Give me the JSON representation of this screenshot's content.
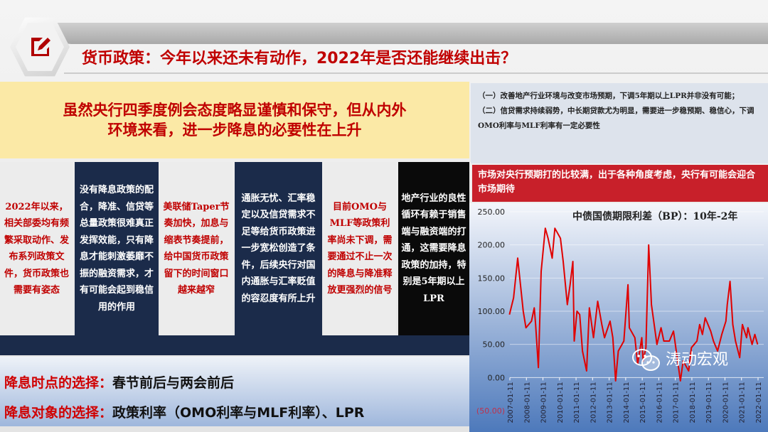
{
  "header": {
    "title": "货币政策：今年以来还未有动作，2022年是否还能继续出击？",
    "icon": "edit-document-icon"
  },
  "banner": {
    "lines": [
      "虽然央行四季度例会态度略显谨慎和保守，但从内外",
      "环境来看，进一步降息的必要性在上升"
    ]
  },
  "columns": [
    {
      "text": "2022年以来，相关部委均有频繁采取动作、发布系列政策文件，货币政策也需要有姿态",
      "style": "light"
    },
    {
      "text": "没有降息政策的配合，降准、信贷等总量政策很难真正发挥效能，只有降息才能刺激萎靡不振的融资需求，才有可能会起到稳信用的作用",
      "style": "navy"
    },
    {
      "text": "美联储Taper节奏加快，加息与缩表节奏提前，给中国货币政策留下的时间窗口越来越窄",
      "style": "light"
    },
    {
      "text": "通胀无忧、汇率稳定以及信贷需求不足等给货币政策进一步宽松创造了条件，后续央行对国内通胀与汇率贬值的容忍度有所上升",
      "style": "navy"
    },
    {
      "text": "目前OMO与MLF等政策利率尚未下调，需要通过不止一次的降息与降准释放更强烈的信号",
      "style": "light"
    },
    {
      "text": "地产行业的良性循环有赖于销售端与融资端的打通，这需要降息政策的加持，特别是5年期以上LPR",
      "style": "black"
    }
  ],
  "bottom": {
    "line1": {
      "key": "降息时点的选择：",
      "value": "春节前后与两会前后"
    },
    "line2": {
      "key": "降息对象的选择：",
      "value": "政策利率（OMO利率与MLF利率）、LPR"
    }
  },
  "right_panel": {
    "points": [
      "（一）改善地产行业环境与改变市场预期，下调5年期以上LPR并非没有可能；",
      "（二）信贷需求持续弱势，中长期贷款尤为明显，需要进一步稳预期、稳信心，下调OMO利率与MLF利率有一定必要性"
    ],
    "callout": "市场对央行预期打的比较满，出于各种角度考虑，央行有可能会迎合市场期待"
  },
  "watermark": {
    "text": "涛动宏观",
    "icon": "wechat-icon"
  },
  "colors": {
    "accent": "#c00000",
    "navy": "#1b2b4a",
    "banner": "#fbe9a6",
    "line": "#e00000"
  },
  "chart_data": {
    "type": "line",
    "title": "中债国债期限利差（BP）：10年-2年",
    "ylim": [
      -50,
      250
    ],
    "yticks": [
      "250.00",
      "200.00",
      "150.00",
      "100.00",
      "50.00",
      "0.00",
      "(50.00)"
    ],
    "ytick_values": [
      250,
      200,
      150,
      100,
      50,
      0,
      -50
    ],
    "xticks": [
      "2007-01-11",
      "2008-01-11",
      "2009-01-11",
      "2010-01-11",
      "2011-01-11",
      "2012-01-11",
      "2013-01-11",
      "2014-01-11",
      "2015-01-11",
      "2016-01-11",
      "2017-01-11",
      "2018-01-11",
      "2019-01-11",
      "2020-01-11",
      "2021-01-11",
      "2022-01-11"
    ],
    "grid": true,
    "series": [
      {
        "color": "#e00000",
        "points": [
          [
            "2007-01",
            95
          ],
          [
            "2007-04",
            120
          ],
          [
            "2007-07",
            180
          ],
          [
            "2007-09",
            140
          ],
          [
            "2007-11",
            100
          ],
          [
            "2008-01",
            75
          ],
          [
            "2008-05",
            85
          ],
          [
            "2008-07",
            105
          ],
          [
            "2008-08",
            80
          ],
          [
            "2008-10",
            15
          ],
          [
            "2008-12",
            160
          ],
          [
            "2009-03",
            225
          ],
          [
            "2009-05",
            210
          ],
          [
            "2009-08",
            180
          ],
          [
            "2009-10",
            225
          ],
          [
            "2010-02",
            210
          ],
          [
            "2010-04",
            175
          ],
          [
            "2010-07",
            110
          ],
          [
            "2010-09",
            140
          ],
          [
            "2010-11",
            175
          ],
          [
            "2010-12",
            55
          ],
          [
            "2011-02",
            100
          ],
          [
            "2011-04",
            95
          ],
          [
            "2011-06",
            40
          ],
          [
            "2011-09",
            10
          ],
          [
            "2011-11",
            105
          ],
          [
            "2012-02",
            60
          ],
          [
            "2012-05",
            115
          ],
          [
            "2012-08",
            80
          ],
          [
            "2012-10",
            60
          ],
          [
            "2013-02",
            85
          ],
          [
            "2013-04",
            60
          ],
          [
            "2013-06",
            -5
          ],
          [
            "2013-08",
            40
          ],
          [
            "2013-12",
            55
          ],
          [
            "2014-03",
            140
          ],
          [
            "2014-04",
            75
          ],
          [
            "2014-08",
            60
          ],
          [
            "2014-10",
            20
          ],
          [
            "2015-01",
            60
          ],
          [
            "2015-02",
            25
          ],
          [
            "2015-04",
            45
          ],
          [
            "2015-06",
            200
          ],
          [
            "2015-08",
            110
          ],
          [
            "2015-12",
            50
          ],
          [
            "2016-03",
            75
          ],
          [
            "2016-05",
            55
          ],
          [
            "2016-09",
            55
          ],
          [
            "2016-12",
            70
          ],
          [
            "2017-02",
            40
          ],
          [
            "2017-05",
            -5
          ],
          [
            "2017-07",
            25
          ],
          [
            "2017-11",
            10
          ],
          [
            "2018-01",
            45
          ],
          [
            "2018-05",
            55
          ],
          [
            "2018-07",
            80
          ],
          [
            "2018-09",
            65
          ],
          [
            "2018-11",
            90
          ],
          [
            "2019-03",
            70
          ],
          [
            "2019-05",
            55
          ],
          [
            "2019-08",
            40
          ],
          [
            "2019-11",
            65
          ],
          [
            "2020-02",
            85
          ],
          [
            "2020-03",
            110
          ],
          [
            "2020-05",
            145
          ],
          [
            "2020-07",
            80
          ],
          [
            "2020-09",
            55
          ],
          [
            "2020-12",
            30
          ],
          [
            "2021-02",
            80
          ],
          [
            "2021-05",
            60
          ],
          [
            "2021-06",
            75
          ],
          [
            "2021-09",
            50
          ],
          [
            "2021-11",
            65
          ],
          [
            "2022-01",
            50
          ]
        ]
      }
    ]
  }
}
